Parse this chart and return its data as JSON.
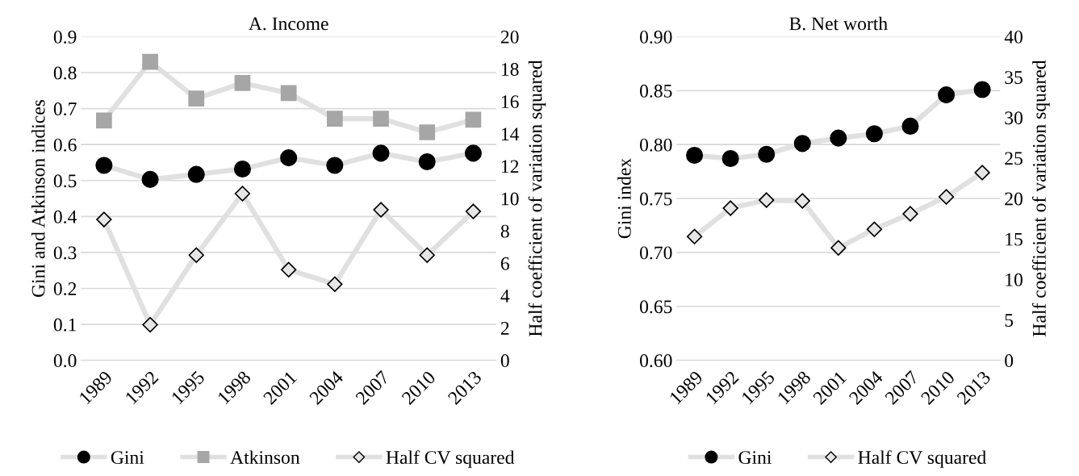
{
  "chart_data": [
    {
      "type": "line",
      "title": "A. Income",
      "ylabel": "Gini and Atkinson indices",
      "y2label": "Half coefficient of variation squared",
      "categories": [
        "1989",
        "1992",
        "1995",
        "1998",
        "2001",
        "2004",
        "2007",
        "2010",
        "2013"
      ],
      "series": [
        {
          "name": "Gini",
          "color": "#000000",
          "marker": "circle",
          "values": [
            0.542,
            0.503,
            0.517,
            0.532,
            0.563,
            0.542,
            0.576,
            0.552,
            0.576
          ]
        },
        {
          "name": "Atkinson",
          "color": "#a6a6a6",
          "marker": "square",
          "values": [
            0.667,
            0.83,
            0.728,
            0.771,
            0.743,
            0.672,
            0.672,
            0.634,
            0.669
          ]
        },
        {
          "name": "Half CV squared",
          "color": "#e6e6e6",
          "marker": "diamond",
          "axis": "y2",
          "values": [
            8.7,
            2.2,
            6.5,
            10.3,
            5.6,
            4.7,
            9.3,
            6.5,
            9.2
          ]
        }
      ],
      "ylim": [
        0,
        0.9
      ],
      "yticks": [
        {
          "value": 0,
          "label": "0.0"
        },
        0.1,
        0.2,
        0.3,
        0.4,
        0.5,
        0.6,
        0.7,
        0.8,
        0.9
      ],
      "y2lim": [
        0,
        20
      ],
      "y2ticks": [
        0,
        2,
        4,
        6,
        8,
        10,
        12,
        14,
        16,
        18,
        20
      ],
      "grid": "y",
      "legend": "bottom",
      "line_style": "solid"
    },
    {
      "type": "line",
      "title": "B. Net worth",
      "ylabel": "Gini index",
      "y2label": "Half coefficient of variation squared",
      "categories": [
        "1989",
        "1992",
        "1995",
        "1998",
        "2001",
        "2004",
        "2007",
        "2010",
        "2013"
      ],
      "series": [
        {
          "name": "Gini",
          "color": "#000000",
          "marker": "circle",
          "values": [
            0.79,
            0.787,
            0.791,
            0.801,
            0.806,
            0.81,
            0.817,
            0.846,
            0.851
          ]
        },
        {
          "name": "Half CV squared",
          "color": "#e6e6e6",
          "marker": "diamond",
          "axis": "y2",
          "values": [
            15.3,
            18.8,
            19.8,
            19.7,
            13.9,
            16.2,
            18.1,
            20.2,
            23.2
          ]
        }
      ],
      "ylim": [
        0.6,
        0.9
      ],
      "yticks": [
        {
          "value": 0.6,
          "label": "0.60"
        },
        {
          "value": 0.65,
          "label": "0.65"
        },
        {
          "value": 0.7,
          "label": "0.70"
        },
        {
          "value": 0.75,
          "label": "0.75"
        },
        {
          "value": 0.8,
          "label": "0.80"
        },
        {
          "value": 0.85,
          "label": "0.85"
        },
        {
          "value": 0.9,
          "label": "0.90"
        }
      ],
      "y2lim": [
        0,
        40
      ],
      "y2ticks": [
        0,
        5,
        10,
        15,
        20,
        25,
        30,
        35,
        40
      ],
      "grid": "y",
      "legend": "bottom",
      "line_style": "solid"
    }
  ]
}
